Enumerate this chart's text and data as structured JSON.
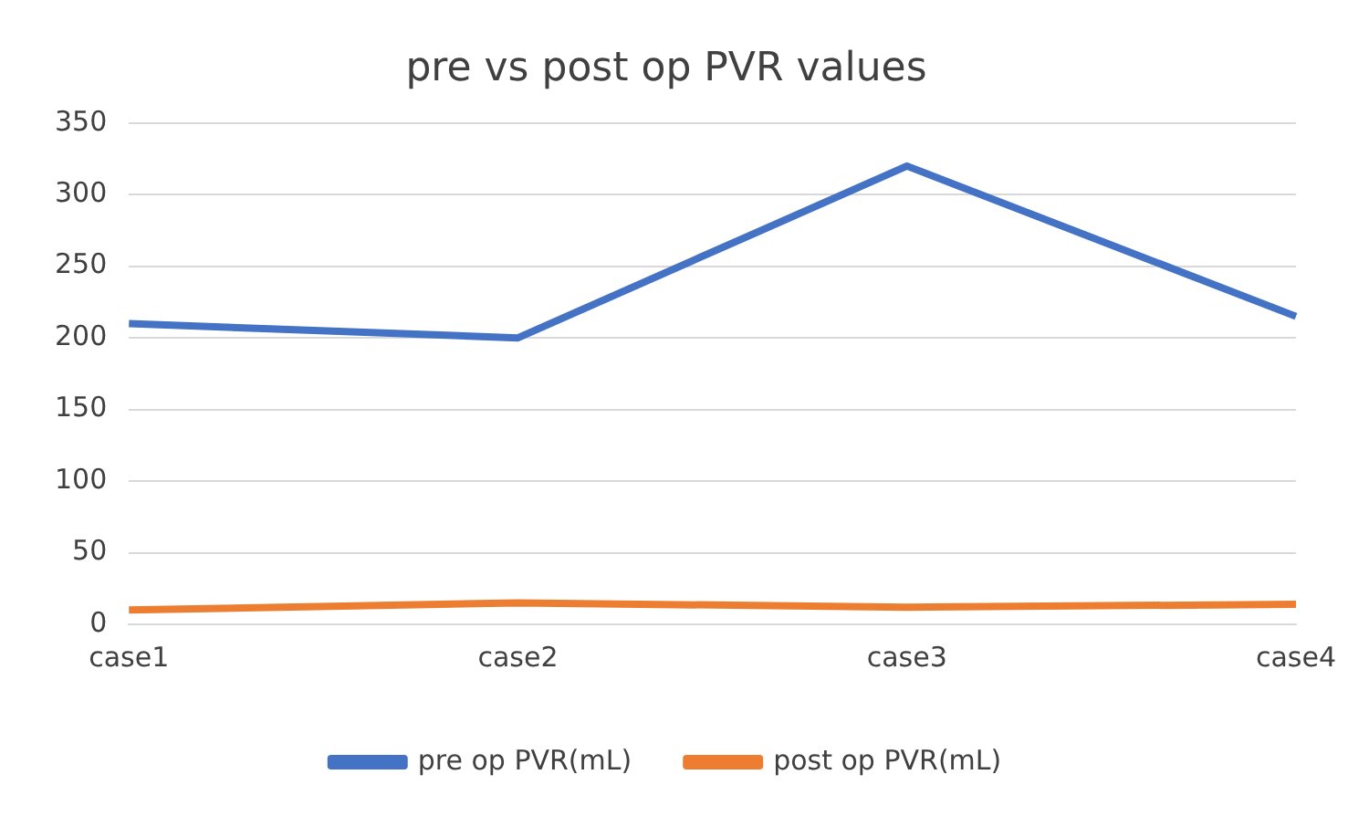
{
  "chart_data": {
    "type": "line",
    "title": "pre vs post op PVR values",
    "categories": [
      "case1",
      "case2",
      "case3",
      "case4"
    ],
    "series": [
      {
        "name": "pre op PVR(mL)",
        "color": "#4472c4",
        "values": [
          210,
          200,
          320,
          215
        ]
      },
      {
        "name": "post op PVR(mL)",
        "color": "#ed7d31",
        "values": [
          10,
          15,
          12,
          14
        ]
      }
    ],
    "ylim": [
      0,
      350
    ],
    "yticks": [
      0,
      50,
      100,
      150,
      200,
      250,
      300,
      350
    ],
    "grid": "y",
    "legend": "bottom",
    "marker": "none",
    "line_style": "solid"
  }
}
